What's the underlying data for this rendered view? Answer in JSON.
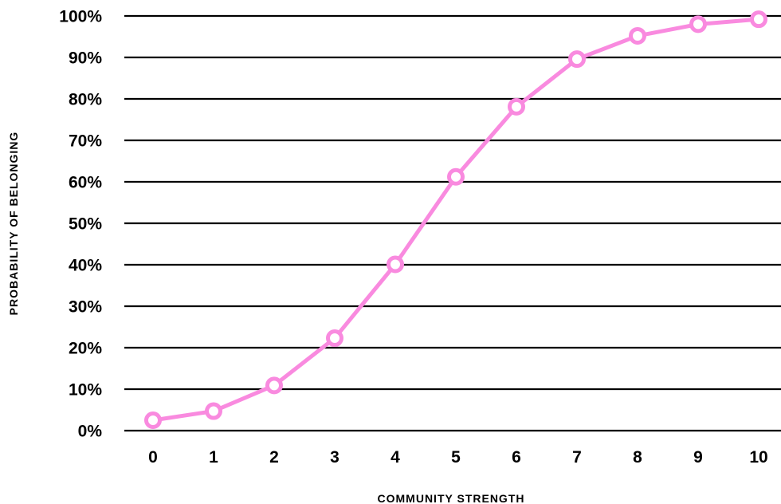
{
  "chart_data": {
    "type": "line",
    "title": "",
    "xlabel": "COMMUNITY STRENGTH",
    "ylabel": "PROBABILITY OF BELONGING",
    "x": [
      0,
      1,
      2,
      3,
      4,
      5,
      6,
      7,
      8,
      9,
      10
    ],
    "x_tick_labels": [
      "0",
      "1",
      "2",
      "3",
      "4",
      "5",
      "6",
      "7",
      "8",
      "9",
      "10"
    ],
    "y_tick_values": [
      0,
      10,
      20,
      30,
      40,
      50,
      60,
      70,
      80,
      90,
      100
    ],
    "y_tick_labels": [
      "0%",
      "10%",
      "20%",
      "30%",
      "40%",
      "50%",
      "60%",
      "70%",
      "80%",
      "90%",
      "100%"
    ],
    "ylim": [
      0,
      100
    ],
    "xlim": [
      0,
      10
    ],
    "grid": "horizontal",
    "legend": "none",
    "series": [
      {
        "values": [
          2.5,
          4.7,
          10.9,
          22.3,
          40.1,
          61.2,
          78.1,
          89.6,
          95.2,
          98.0,
          99.2
        ],
        "color": "#f98adf"
      }
    ]
  }
}
